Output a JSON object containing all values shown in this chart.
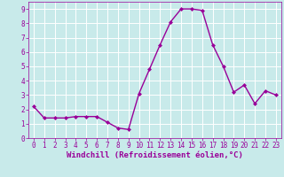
{
  "x": [
    0,
    1,
    2,
    3,
    4,
    5,
    6,
    7,
    8,
    9,
    10,
    11,
    12,
    13,
    14,
    15,
    16,
    17,
    18,
    19,
    20,
    21,
    22,
    23
  ],
  "y": [
    2.2,
    1.4,
    1.4,
    1.4,
    1.5,
    1.5,
    1.5,
    1.1,
    0.7,
    0.6,
    3.1,
    4.8,
    6.5,
    8.1,
    9.0,
    9.0,
    8.9,
    6.5,
    5.0,
    3.2,
    3.7,
    2.4,
    3.3,
    3.0
  ],
  "line_color": "#990099",
  "marker": "D",
  "marker_size": 2.0,
  "line_width": 1.0,
  "bg_color": "#c8eaea",
  "plot_bg_color": "#c8eaea",
  "grid_color": "#ffffff",
  "xlabel": "Windchill (Refroidissement éolien,°C)",
  "xlabel_color": "#990099",
  "xlabel_fontsize": 6.5,
  "tick_color": "#990099",
  "tick_fontsize": 5.5,
  "xlim": [
    -0.5,
    23.5
  ],
  "ylim": [
    0,
    9.5
  ],
  "yticks": [
    0,
    1,
    2,
    3,
    4,
    5,
    6,
    7,
    8,
    9
  ],
  "xticks": [
    0,
    1,
    2,
    3,
    4,
    5,
    6,
    7,
    8,
    9,
    10,
    11,
    12,
    13,
    14,
    15,
    16,
    17,
    18,
    19,
    20,
    21,
    22,
    23
  ]
}
